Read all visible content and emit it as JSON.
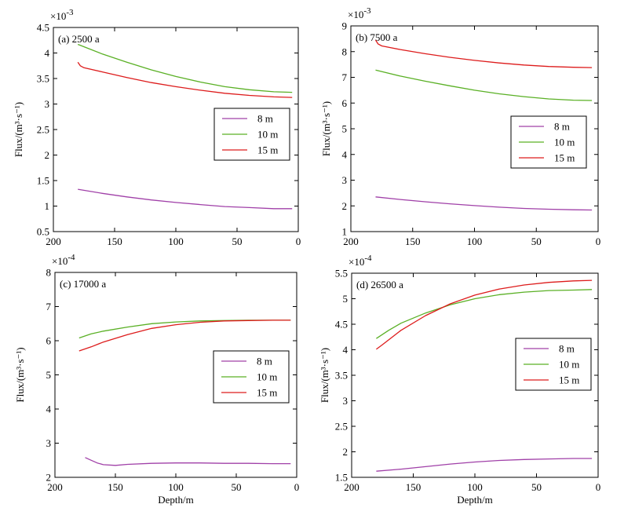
{
  "chart_data": [
    {
      "type": "line",
      "panel_label": "(a) 2500 a",
      "ylabel": "Flux/(m³·s⁻¹)",
      "xlabel": "",
      "exponent_base": "×10",
      "exponent_power": "-3",
      "xlim": [
        200,
        0
      ],
      "xticks": [
        200,
        150,
        100,
        50,
        0
      ],
      "ylim": [
        0.5,
        4.5
      ],
      "yticks": [
        0.5,
        1,
        1.5,
        2,
        2.5,
        3,
        3.5,
        4,
        4.5
      ],
      "ytick_labels": [
        "0.5",
        "1",
        "1.5",
        "2",
        "2.5",
        "3",
        "3.5",
        "4",
        "4.5"
      ],
      "legend": [
        "8 m",
        "10 m",
        "15 m"
      ],
      "series": [
        {
          "name": "8 m",
          "color": "#a040a8",
          "x": [
            180,
            160,
            140,
            120,
            100,
            80,
            60,
            40,
            20,
            5
          ],
          "values": [
            1.33,
            1.25,
            1.18,
            1.12,
            1.07,
            1.03,
            0.99,
            0.97,
            0.95,
            0.95
          ]
        },
        {
          "name": "10 m",
          "color": "#5ab025",
          "x": [
            180,
            160,
            140,
            120,
            100,
            80,
            60,
            40,
            20,
            5
          ],
          "values": [
            4.17,
            3.98,
            3.82,
            3.67,
            3.54,
            3.43,
            3.34,
            3.28,
            3.24,
            3.23
          ]
        },
        {
          "name": "15 m",
          "color": "#dd1c1c",
          "x": [
            180,
            178,
            175,
            160,
            140,
            120,
            100,
            80,
            60,
            40,
            20,
            5
          ],
          "values": [
            3.82,
            3.75,
            3.71,
            3.63,
            3.52,
            3.42,
            3.34,
            3.27,
            3.21,
            3.17,
            3.14,
            3.13
          ]
        }
      ]
    },
    {
      "type": "line",
      "panel_label": "(b) 7500 a",
      "ylabel": "Flux/(m³·s⁻¹)",
      "xlabel": "",
      "exponent_base": "×10",
      "exponent_power": "-3",
      "xlim": [
        200,
        0
      ],
      "xticks": [
        200,
        150,
        100,
        50,
        0
      ],
      "ylim": [
        1,
        9
      ],
      "yticks": [
        1,
        2,
        3,
        4,
        5,
        6,
        7,
        8,
        9
      ],
      "ytick_labels": [
        "1",
        "2",
        "3",
        "4",
        "5",
        "6",
        "7",
        "8",
        "9"
      ],
      "legend": [
        "8 m",
        "10 m",
        "15 m"
      ],
      "series": [
        {
          "name": "8 m",
          "color": "#a040a8",
          "x": [
            180,
            160,
            140,
            120,
            100,
            80,
            60,
            40,
            20,
            5
          ],
          "values": [
            2.35,
            2.25,
            2.16,
            2.08,
            2.01,
            1.95,
            1.9,
            1.87,
            1.85,
            1.84
          ]
        },
        {
          "name": "10 m",
          "color": "#5ab025",
          "x": [
            180,
            160,
            140,
            120,
            100,
            80,
            60,
            40,
            20,
            5
          ],
          "values": [
            7.28,
            7.05,
            6.85,
            6.67,
            6.5,
            6.36,
            6.25,
            6.16,
            6.11,
            6.1
          ]
        },
        {
          "name": "15 m",
          "color": "#dd1c1c",
          "x": [
            180,
            178,
            175,
            160,
            140,
            120,
            100,
            80,
            60,
            40,
            20,
            5
          ],
          "values": [
            8.45,
            8.3,
            8.22,
            8.08,
            7.92,
            7.78,
            7.66,
            7.56,
            7.48,
            7.42,
            7.39,
            7.38
          ]
        }
      ]
    },
    {
      "type": "line",
      "panel_label": "(c) 17000 a",
      "ylabel": "Flux/(m³·s⁻¹)",
      "xlabel": "Depth/m",
      "exponent_base": "×10",
      "exponent_power": "-4",
      "xlim": [
        200,
        0
      ],
      "xticks": [
        200,
        150,
        100,
        50,
        0
      ],
      "ylim": [
        2,
        8
      ],
      "yticks": [
        2,
        3,
        4,
        5,
        6,
        7,
        8
      ],
      "ytick_labels": [
        "2",
        "3",
        "4",
        "5",
        "6",
        "7",
        "8"
      ],
      "legend": [
        "8 m",
        "10 m",
        "15 m"
      ],
      "series": [
        {
          "name": "8 m",
          "color": "#a040a8",
          "x": [
            175,
            170,
            165,
            160,
            150,
            140,
            120,
            100,
            80,
            60,
            40,
            20,
            5
          ],
          "values": [
            2.58,
            2.5,
            2.42,
            2.37,
            2.35,
            2.38,
            2.41,
            2.42,
            2.42,
            2.41,
            2.41,
            2.4,
            2.4
          ]
        },
        {
          "name": "10 m",
          "color": "#5ab025",
          "x": [
            180,
            170,
            160,
            140,
            120,
            100,
            80,
            60,
            40,
            20,
            5
          ],
          "values": [
            6.08,
            6.2,
            6.28,
            6.4,
            6.5,
            6.55,
            6.58,
            6.59,
            6.6,
            6.6,
            6.6
          ]
        },
        {
          "name": "15 m",
          "color": "#dd1c1c",
          "x": [
            180,
            170,
            160,
            140,
            120,
            100,
            80,
            60,
            40,
            20,
            5
          ],
          "values": [
            5.7,
            5.82,
            5.96,
            6.18,
            6.36,
            6.47,
            6.54,
            6.58,
            6.59,
            6.6,
            6.6
          ]
        }
      ]
    },
    {
      "type": "line",
      "panel_label": "(d) 26500 a",
      "ylabel": "Flux/(m³·s⁻¹)",
      "xlabel": "Depth/m",
      "exponent_base": "×10",
      "exponent_power": "-4",
      "xlim": [
        200,
        0
      ],
      "xticks": [
        200,
        150,
        100,
        50,
        0
      ],
      "ylim": [
        1.5,
        5.5
      ],
      "yticks": [
        1.5,
        2,
        2.5,
        3,
        3.5,
        4,
        4.5,
        5,
        5.5
      ],
      "ytick_labels": [
        "1.5",
        "2",
        "2.5",
        "3",
        "3.5",
        "4",
        "4.5",
        "5",
        "5.5"
      ],
      "legend": [
        "8 m",
        "10 m",
        "15 m"
      ],
      "series": [
        {
          "name": "8 m",
          "color": "#a040a8",
          "x": [
            180,
            160,
            140,
            120,
            100,
            80,
            60,
            40,
            20,
            5
          ],
          "values": [
            1.62,
            1.66,
            1.71,
            1.76,
            1.8,
            1.83,
            1.85,
            1.86,
            1.87,
            1.87
          ]
        },
        {
          "name": "10 m",
          "color": "#5ab025",
          "x": [
            180,
            170,
            160,
            140,
            120,
            100,
            80,
            60,
            40,
            20,
            5
          ],
          "values": [
            4.22,
            4.38,
            4.52,
            4.72,
            4.88,
            5.0,
            5.08,
            5.13,
            5.16,
            5.17,
            5.18
          ]
        },
        {
          "name": "15 m",
          "color": "#dd1c1c",
          "x": [
            180,
            175,
            160,
            140,
            120,
            100,
            80,
            60,
            40,
            20,
            5
          ],
          "values": [
            4.01,
            4.1,
            4.38,
            4.67,
            4.9,
            5.07,
            5.19,
            5.27,
            5.32,
            5.35,
            5.36
          ]
        }
      ]
    }
  ]
}
